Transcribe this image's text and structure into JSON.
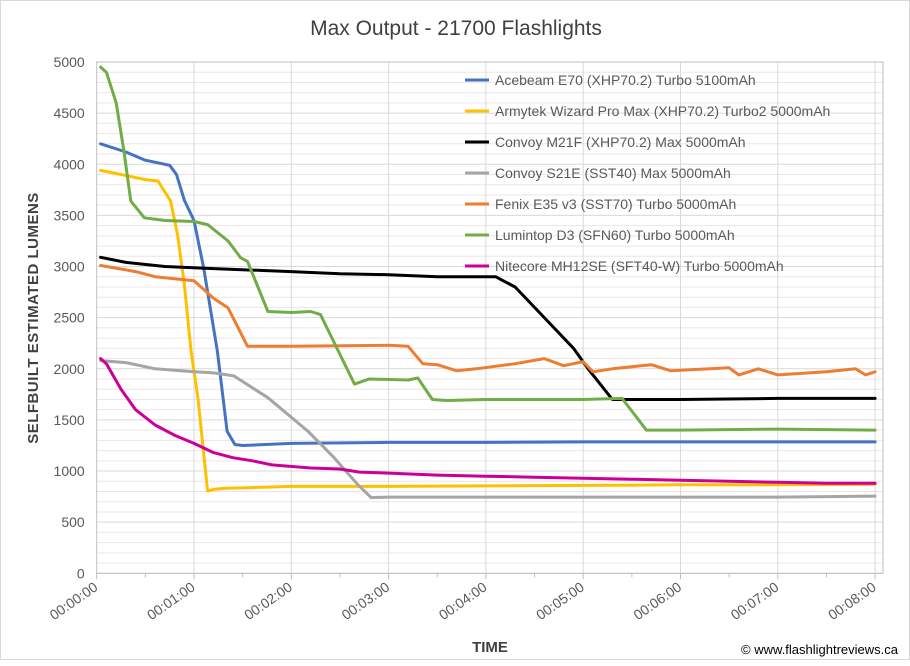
{
  "chart_data": {
    "type": "line",
    "title": "Max Output - 21700 Flashlights",
    "xlabel": "TIME",
    "ylabel": "SELFBUILT ESTIMATED LUMENS",
    "xlim_minutes": [
      0,
      8
    ],
    "ylim": [
      0,
      5000
    ],
    "yticks": [
      0,
      500,
      1000,
      1500,
      2000,
      2500,
      3000,
      3500,
      4000,
      4500,
      5000
    ],
    "xtick_labels": [
      "00:00:00",
      "00:01:00",
      "00:02:00",
      "00:03:00",
      "00:04:00",
      "00:05:00",
      "00:06:00",
      "00:07:00",
      "00:08:00"
    ],
    "grid": true,
    "legend_position": "top-right",
    "copyright": "© www.flashlightreviews.ca",
    "series": [
      {
        "name": "Acebeam E70 (XHP70.2) Turbo 5100mAh",
        "color": "#4472C4",
        "points": [
          [
            0.04,
            4200
          ],
          [
            0.3,
            4120
          ],
          [
            0.5,
            4040
          ],
          [
            0.75,
            3990
          ],
          [
            0.82,
            3900
          ],
          [
            0.9,
            3650
          ],
          [
            1.0,
            3450
          ],
          [
            1.1,
            2985
          ],
          [
            1.24,
            2170
          ],
          [
            1.34,
            1390
          ],
          [
            1.42,
            1260
          ],
          [
            1.5,
            1250
          ],
          [
            2,
            1270
          ],
          [
            3,
            1280
          ],
          [
            4,
            1280
          ],
          [
            5,
            1285
          ],
          [
            6,
            1285
          ],
          [
            7,
            1285
          ],
          [
            8,
            1285
          ]
        ]
      },
      {
        "name": "Armytek Wizard Pro Max (XHP70.2) Turbo2 5000mAh",
        "color": "#FFC000",
        "points": [
          [
            0.04,
            3940
          ],
          [
            0.2,
            3910
          ],
          [
            0.5,
            3850
          ],
          [
            0.63,
            3836
          ],
          [
            0.76,
            3640
          ],
          [
            0.83,
            3314
          ],
          [
            0.9,
            2825
          ],
          [
            0.97,
            2170
          ],
          [
            1.04,
            1717
          ],
          [
            1.14,
            805
          ],
          [
            1.2,
            820
          ],
          [
            1.3,
            830
          ],
          [
            2,
            850
          ],
          [
            3,
            850
          ],
          [
            4,
            855
          ],
          [
            5,
            860
          ],
          [
            6,
            865
          ],
          [
            7,
            865
          ],
          [
            8,
            870
          ]
        ]
      },
      {
        "name": "Convoy M21F (XHP70.2) Max 5000mAh",
        "color": "#000000",
        "points": [
          [
            0.04,
            3090
          ],
          [
            0.3,
            3040
          ],
          [
            0.7,
            3000
          ],
          [
            1.2,
            2980
          ],
          [
            2,
            2950
          ],
          [
            2.5,
            2930
          ],
          [
            3,
            2920
          ],
          [
            3.5,
            2900
          ],
          [
            4.1,
            2900
          ],
          [
            4.3,
            2800
          ],
          [
            4.6,
            2500
          ],
          [
            4.9,
            2200
          ],
          [
            5.05,
            2000
          ],
          [
            5.3,
            1700
          ],
          [
            6,
            1700
          ],
          [
            7,
            1710
          ],
          [
            8,
            1710
          ]
        ]
      },
      {
        "name": "Convoy S21E (SST40) Max 5000mAh",
        "color": "#A5A5A5",
        "points": [
          [
            0.04,
            2080
          ],
          [
            0.3,
            2060
          ],
          [
            0.6,
            2000
          ],
          [
            1.0,
            1970
          ],
          [
            1.2,
            1960
          ],
          [
            1.41,
            1930
          ],
          [
            1.76,
            1717
          ],
          [
            2.17,
            1391
          ],
          [
            2.44,
            1130
          ],
          [
            2.68,
            870
          ],
          [
            2.82,
            740
          ],
          [
            3,
            745
          ],
          [
            5,
            745
          ],
          [
            7,
            745
          ],
          [
            8,
            755
          ]
        ]
      },
      {
        "name": "Fenix E35 v3 (SST70) Turbo 5000mAh",
        "color": "#ED7D31",
        "points": [
          [
            0.04,
            3010
          ],
          [
            0.4,
            2950
          ],
          [
            0.6,
            2900
          ],
          [
            0.9,
            2870
          ],
          [
            1.0,
            2860
          ],
          [
            1.2,
            2690
          ],
          [
            1.35,
            2595
          ],
          [
            1.55,
            2220
          ],
          [
            2,
            2220
          ],
          [
            3,
            2230
          ],
          [
            3.2,
            2220
          ],
          [
            3.35,
            2050
          ],
          [
            3.5,
            2040
          ],
          [
            3.7,
            1980
          ],
          [
            3.9,
            2000
          ],
          [
            4.3,
            2050
          ],
          [
            4.6,
            2100
          ],
          [
            4.8,
            2030
          ],
          [
            5.0,
            2070
          ],
          [
            5.1,
            1970
          ],
          [
            5.3,
            2000
          ],
          [
            5.7,
            2040
          ],
          [
            5.9,
            1980
          ],
          [
            6.5,
            2010
          ],
          [
            6.6,
            1940
          ],
          [
            6.8,
            2000
          ],
          [
            7.0,
            1940
          ],
          [
            7.5,
            1970
          ],
          [
            7.8,
            2000
          ],
          [
            7.9,
            1940
          ],
          [
            8,
            1970
          ]
        ]
      },
      {
        "name": "Lumintop D3 (SFN60) Turbo 5000mAh",
        "color": "#70AD47",
        "points": [
          [
            0.04,
            4950
          ],
          [
            0.1,
            4900
          ],
          [
            0.2,
            4600
          ],
          [
            0.28,
            4130
          ],
          [
            0.35,
            3640
          ],
          [
            0.49,
            3476
          ],
          [
            0.7,
            3450
          ],
          [
            1.0,
            3440
          ],
          [
            1.14,
            3410
          ],
          [
            1.35,
            3250
          ],
          [
            1.48,
            3085
          ],
          [
            1.55,
            3050
          ],
          [
            1.76,
            2560
          ],
          [
            2,
            2550
          ],
          [
            2.2,
            2560
          ],
          [
            2.3,
            2530
          ],
          [
            2.65,
            1850
          ],
          [
            2.8,
            1900
          ],
          [
            3.2,
            1890
          ],
          [
            3.3,
            1910
          ],
          [
            3.45,
            1700
          ],
          [
            3.6,
            1690
          ],
          [
            4,
            1700
          ],
          [
            5,
            1700
          ],
          [
            5.4,
            1710
          ],
          [
            5.65,
            1400
          ],
          [
            6,
            1400
          ],
          [
            7,
            1410
          ],
          [
            8,
            1400
          ]
        ]
      },
      {
        "name": "Nitecore MH12SE (SFT40-W) Turbo 5000mAh",
        "color": "#CC0099",
        "points": [
          [
            0.04,
            2100
          ],
          [
            0.1,
            2050
          ],
          [
            0.25,
            1800
          ],
          [
            0.4,
            1600
          ],
          [
            0.6,
            1450
          ],
          [
            0.8,
            1350
          ],
          [
            1.0,
            1270
          ],
          [
            1.2,
            1180
          ],
          [
            1.4,
            1130
          ],
          [
            1.6,
            1100
          ],
          [
            1.8,
            1060
          ],
          [
            2.2,
            1030
          ],
          [
            2.5,
            1020
          ],
          [
            2.7,
            990
          ],
          [
            3,
            980
          ],
          [
            3.5,
            960
          ],
          [
            4,
            950
          ],
          [
            4.5,
            940
          ],
          [
            5,
            930
          ],
          [
            5.5,
            920
          ],
          [
            6,
            910
          ],
          [
            6.5,
            900
          ],
          [
            7,
            890
          ],
          [
            7.5,
            880
          ],
          [
            8,
            880
          ]
        ]
      }
    ]
  }
}
